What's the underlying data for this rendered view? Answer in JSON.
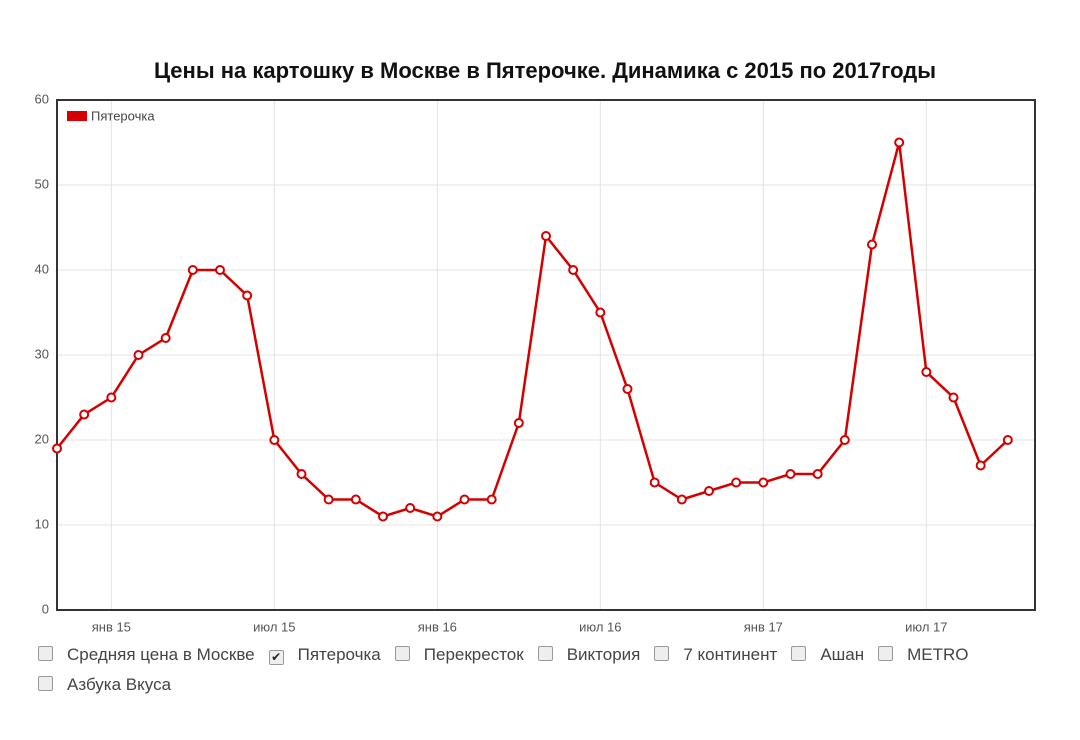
{
  "chart_data": {
    "type": "line",
    "title": "Цены на картошку в Москве в Пятерочке. Динамика с 2015 по 2017годы",
    "x": [
      "2014-11",
      "2014-12",
      "2015-01",
      "2015-02",
      "2015-03",
      "2015-04",
      "2015-05",
      "2015-06",
      "2015-07",
      "2015-08",
      "2015-09",
      "2015-10",
      "2015-11",
      "2015-12",
      "2016-01",
      "2016-02",
      "2016-03",
      "2016-04",
      "2016-05",
      "2016-06",
      "2016-07",
      "2016-08",
      "2016-09",
      "2016-10",
      "2016-11",
      "2016-12",
      "2017-01",
      "2017-02",
      "2017-03",
      "2017-04",
      "2017-05",
      "2017-06",
      "2017-07",
      "2017-08",
      "2017-09",
      "2017-10"
    ],
    "series": [
      {
        "name": "Пятерочка",
        "color": "#d40000",
        "values": [
          19,
          23,
          25,
          30,
          32,
          40,
          40,
          37,
          20,
          16,
          13,
          13,
          11,
          12,
          11,
          13,
          13,
          22,
          44,
          40,
          35,
          26,
          15,
          13,
          14,
          15,
          15,
          16,
          16,
          20,
          43,
          55,
          28,
          25,
          17,
          20
        ]
      }
    ],
    "xlim": [
      "2014-11",
      "2017-11"
    ],
    "xticks": [
      {
        "value": "2015-01",
        "label": "янв 15"
      },
      {
        "value": "2015-07",
        "label": "июл 15"
      },
      {
        "value": "2016-01",
        "label": "янв 16"
      },
      {
        "value": "2016-07",
        "label": "июл 16"
      },
      {
        "value": "2017-01",
        "label": "янв 17"
      },
      {
        "value": "2017-07",
        "label": "июл 17"
      }
    ],
    "ylim": [
      0,
      60
    ],
    "yticks": [
      0,
      10,
      20,
      30,
      40,
      50,
      60
    ],
    "grid": true,
    "legend": "top-left"
  },
  "filters": [
    {
      "label": "Средняя цена в Москве",
      "checked": false
    },
    {
      "label": "Пятерочка",
      "checked": true
    },
    {
      "label": "Перекресток",
      "checked": false
    },
    {
      "label": "Виктория",
      "checked": false
    },
    {
      "label": "7 континент",
      "checked": false
    },
    {
      "label": "Ашан",
      "checked": false
    },
    {
      "label": "METRO",
      "checked": false
    },
    {
      "label": "Азбука Вкуса",
      "checked": false
    }
  ]
}
